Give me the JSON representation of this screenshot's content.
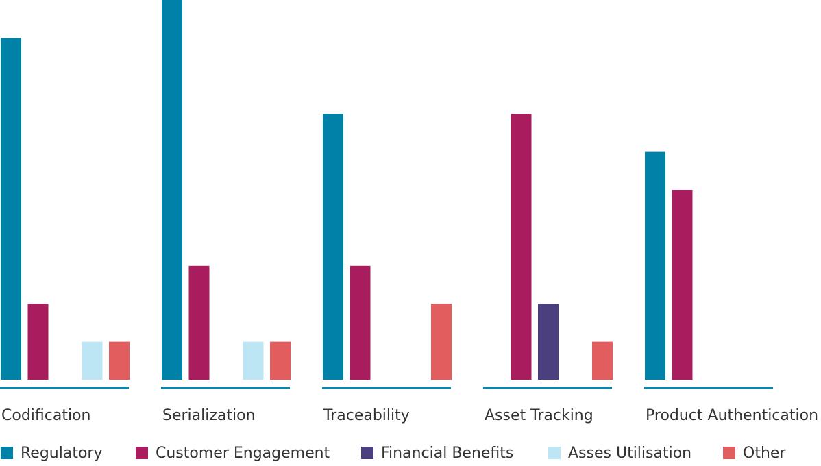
{
  "chart_data": {
    "type": "bar",
    "categories": [
      "Codification",
      "Serialization",
      "Traceability",
      "Asset Tracking",
      "Product Authentication"
    ],
    "series": [
      {
        "name": "Regulatory",
        "color": "#0081a8",
        "values": [
          9,
          10,
          7,
          0,
          6
        ]
      },
      {
        "name": "Customer Engagement",
        "color": "#a91c5e",
        "values": [
          2,
          3,
          3,
          7,
          5
        ]
      },
      {
        "name": "Financial Benefits",
        "color": "#4b3f7f",
        "values": [
          0,
          0,
          0,
          2,
          0
        ]
      },
      {
        "name": "Asses Utilisation",
        "color": "#bde6f5",
        "values": [
          1,
          1,
          0,
          0,
          0
        ]
      },
      {
        "name": "Other",
        "color": "#e25e5e",
        "values": [
          1,
          1,
          2,
          1,
          0
        ]
      }
    ],
    "ylim": [
      0,
      10
    ],
    "legend": "bottom"
  }
}
